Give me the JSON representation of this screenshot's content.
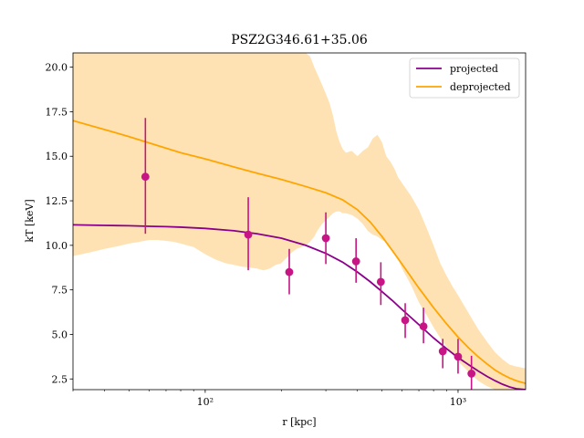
{
  "colors": {
    "projected": "#8b008b",
    "deprojected": "#ffa500",
    "band": "#ffe2b3",
    "points": "#c71585"
  },
  "chart_data": {
    "type": "line",
    "title": "PSZ2G346.61+35.06",
    "xlabel": "r [kpc]",
    "ylabel": "kT [keV]",
    "xscale": "log",
    "xlim": [
      30,
      1850
    ],
    "ylim": [
      1.9,
      20.8
    ],
    "yticks": [
      2.5,
      5.0,
      7.5,
      10.0,
      12.5,
      15.0,
      17.5,
      20.0
    ],
    "ytick_labels": [
      "2.5",
      "5.0",
      "7.5",
      "10.0",
      "12.5",
      "15.0",
      "17.5",
      "20.0"
    ],
    "xticks_major": [
      100,
      1000
    ],
    "xtick_labels": [
      "10²",
      "10³"
    ],
    "legend_position": "top-right",
    "series": [
      {
        "name": "projected",
        "kind": "line",
        "x": [
          30,
          40,
          50,
          60,
          70,
          80,
          100,
          130,
          160,
          200,
          250,
          300,
          350,
          400,
          450,
          500,
          550,
          600,
          700,
          800,
          900,
          1000,
          1100,
          1200,
          1300,
          1400,
          1500,
          1600,
          1700,
          1850
        ],
        "y": [
          11.15,
          11.12,
          11.1,
          11.07,
          11.05,
          11.02,
          10.95,
          10.82,
          10.65,
          10.4,
          10.0,
          9.55,
          9.05,
          8.5,
          7.95,
          7.4,
          6.9,
          6.4,
          5.55,
          4.8,
          4.2,
          3.7,
          3.3,
          2.95,
          2.65,
          2.4,
          2.2,
          2.05,
          1.95,
          1.9
        ]
      },
      {
        "name": "deprojected",
        "kind": "line",
        "x": [
          30,
          40,
          50,
          60,
          80,
          100,
          130,
          160,
          200,
          250,
          300,
          350,
          400,
          450,
          500,
          550,
          600,
          650,
          700,
          800,
          900,
          1000,
          1100,
          1200,
          1300,
          1400,
          1500,
          1600,
          1700,
          1850
        ],
        "y": [
          17.0,
          16.5,
          16.1,
          15.75,
          15.2,
          14.85,
          14.4,
          14.05,
          13.7,
          13.3,
          12.95,
          12.55,
          12.0,
          11.3,
          10.5,
          9.7,
          8.95,
          8.25,
          7.6,
          6.5,
          5.6,
          4.85,
          4.25,
          3.75,
          3.35,
          3.0,
          2.75,
          2.55,
          2.4,
          2.25
        ]
      },
      {
        "name": "deprojected-band",
        "kind": "band",
        "x": [
          30,
          35,
          40,
          45,
          50,
          55,
          60,
          65,
          70,
          75,
          80,
          90,
          100,
          110,
          120,
          130,
          140,
          150,
          160,
          170,
          180,
          190,
          200,
          210,
          220,
          230,
          240,
          250,
          260,
          270,
          280,
          290,
          300,
          310,
          320,
          330,
          340,
          350,
          360,
          380,
          400,
          420,
          440,
          460,
          480,
          500,
          520,
          540,
          560,
          580,
          600,
          650,
          700,
          750,
          800,
          850,
          900,
          950,
          1000,
          1100,
          1200,
          1300,
          1400,
          1500,
          1600,
          1700,
          1850
        ],
        "upper": [
          20.8,
          20.8,
          20.8,
          20.8,
          20.8,
          20.8,
          20.8,
          20.8,
          20.8,
          20.8,
          20.8,
          20.8,
          20.8,
          20.8,
          20.8,
          20.8,
          20.8,
          20.8,
          20.8,
          20.8,
          20.8,
          20.8,
          20.8,
          20.8,
          20.8,
          20.8,
          20.8,
          20.8,
          20.6,
          20.0,
          19.5,
          19.0,
          18.5,
          18.0,
          17.3,
          16.4,
          15.8,
          15.4,
          15.2,
          15.3,
          15.0,
          15.3,
          15.5,
          16.0,
          16.2,
          15.8,
          15.0,
          14.7,
          14.3,
          13.8,
          13.5,
          12.8,
          12.0,
          11.0,
          10.0,
          9.0,
          8.3,
          7.7,
          7.2,
          6.2,
          5.3,
          4.6,
          4.0,
          3.6,
          3.3,
          3.2,
          3.1
        ],
        "lower": [
          9.4,
          9.6,
          9.8,
          9.95,
          10.1,
          10.2,
          10.3,
          10.3,
          10.25,
          10.2,
          10.1,
          9.9,
          9.5,
          9.2,
          9.0,
          8.9,
          8.8,
          8.75,
          8.7,
          8.6,
          8.7,
          8.9,
          9.0,
          9.3,
          9.6,
          9.8,
          9.9,
          10.0,
          10.2,
          10.5,
          10.9,
          11.2,
          11.4,
          11.6,
          11.8,
          11.9,
          11.9,
          11.8,
          11.8,
          11.7,
          11.5,
          11.2,
          10.8,
          10.6,
          10.5,
          10.3,
          10.2,
          9.8,
          9.5,
          9.2,
          8.7,
          7.8,
          6.8,
          6.1,
          5.4,
          4.8,
          4.3,
          3.9,
          3.5,
          2.9,
          2.4,
          2.1,
          1.9,
          1.9,
          1.9,
          1.9,
          1.9
        ]
      },
      {
        "name": "data",
        "kind": "errorbar",
        "x": [
          58,
          148,
          215,
          300,
          395,
          495,
          618,
          730,
          870,
          1000,
          1130
        ],
        "y": [
          13.85,
          10.6,
          8.5,
          10.4,
          9.1,
          7.95,
          5.8,
          5.45,
          4.05,
          3.75,
          2.8
        ],
        "yerr_low": [
          3.2,
          2.0,
          1.25,
          1.45,
          1.2,
          1.3,
          1.0,
          0.95,
          0.95,
          0.95,
          0.95
        ],
        "yerr_high": [
          3.3,
          2.1,
          1.3,
          1.45,
          1.3,
          1.1,
          0.95,
          1.05,
          0.7,
          1.0,
          1.0
        ]
      }
    ]
  }
}
